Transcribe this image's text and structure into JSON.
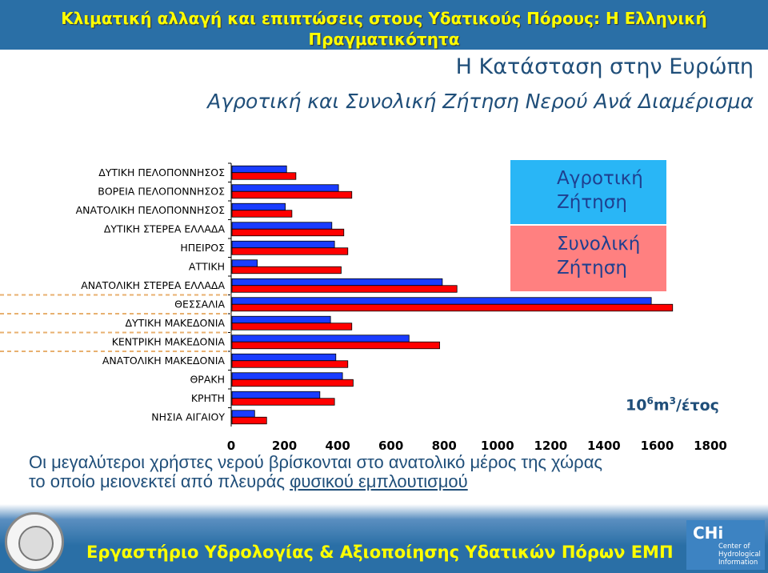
{
  "header": {
    "title_line1": "Κλιματική αλλαγή και επιπτώσεις στους Υδατικούς Πόρους: Η Ελληνική",
    "title_line2": "Πραγματικότητα"
  },
  "subtitle": {
    "europe": "Η Κατάσταση στην Ευρώπη",
    "demand": "Αγροτική και Συνολική Ζήτηση Νερού Ανά Διαμέρισμα"
  },
  "legend": {
    "agricultural": "Αγροτική\nΖήτηση",
    "total": "Συνολική\nΖήτηση"
  },
  "unit": {
    "base": "10",
    "exp1": "6",
    "mid": "m",
    "exp2": "3",
    "tail": "/έτος"
  },
  "caption": {
    "line1": "Οι μεγαλύτεροι χρήστες νερού βρίσκονται στο ανατολικό μέρος της χώρας",
    "line2_plain": "το οποίο μειονεκτεί από πλευράς ",
    "line2_underlined": "φυσικού εμπλουτισμού"
  },
  "footer": {
    "lab": "Εργαστήριο Υδρολογίας & Αξιοποίησης Υδατικών Πόρων ΕΜΠ"
  },
  "logo": {
    "chi_big": "CHi",
    "chi_l1": "Center of",
    "chi_l2": "Hydrological",
    "chi_l3": "Information"
  },
  "colors": {
    "agricultural": "#1a3cff",
    "total": "#ff0000",
    "header_bg": "#2a6fa6",
    "title": "#ffff00"
  },
  "chart_data": {
    "type": "bar",
    "orientation": "horizontal",
    "categories": [
      "ΔΥΤΙΚΗ ΠΕΛΟΠΟΝΝΗΣΟΣ",
      "ΒΟΡΕΙΑ ΠΕΛΟΠΟΝΝΗΣΟΣ",
      "ΑΝΑΤΟΛΙΚΗ ΠΕΛΟΠΟΝΝΗΣΟΣ",
      "ΔΥΤΙΚΗ ΣΤΕΡΕΑ ΕΛΛΑΔΑ",
      "ΗΠΕΙΡΟΣ",
      "ΑΤΤΙΚΗ",
      "ΑΝΑΤΟΛΙΚΗ ΣΤΕΡΕΑ ΕΛΛΑΔΑ",
      "ΘΕΣΣΑΛΙΑ",
      "ΔΥΤΙΚΗ ΜΑΚΕΔΟΝΙΑ",
      "ΚΕΝΤΡΙΚΗ ΜΑΚΕΔΟΝΙΑ",
      "ΑΝΑΤΟΛΙΚΗ ΜΑΚΕΔΟΝΙΑ",
      "ΘΡΑΚΗ",
      "ΚΡΗΤΗ",
      "ΝΗΣΙΑ ΑΙΓΑΙΟΥ"
    ],
    "series": [
      {
        "name": "Αγροτική Ζήτηση",
        "values": [
          205,
          400,
          200,
          375,
          385,
          95,
          790,
          1575,
          370,
          665,
          390,
          415,
          330,
          85
        ]
      },
      {
        "name": "Συνολική Ζήτηση",
        "values": [
          240,
          450,
          225,
          420,
          435,
          410,
          845,
          1655,
          450,
          780,
          435,
          455,
          385,
          130
        ]
      }
    ],
    "xticks": [
      "0",
      "200",
      "400",
      "600",
      "800",
      "1000",
      "1200",
      "1400",
      "1600",
      "1800"
    ],
    "xlim": [
      0,
      1800
    ]
  }
}
